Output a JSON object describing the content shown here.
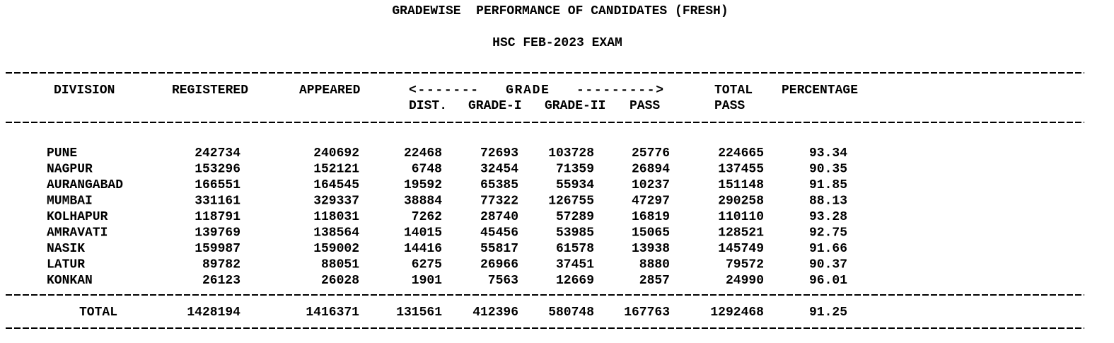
{
  "title": "GRADEWISE  PERFORMANCE OF CANDIDATES (FRESH)",
  "subtitle": "HSC FEB-2023 EXAM",
  "headers": {
    "division": "DIVISION",
    "registered": "REGISTERED",
    "appeared": "APPEARED",
    "grade": "<-------   GRADE   --------->",
    "dist": "DIST.",
    "grade_1": "GRADE-I",
    "grade_2": "GRADE-II",
    "pass": "PASS",
    "total_pass": [
      "TOTAL",
      "PASS"
    ],
    "percentage": "PERCENTAGE"
  },
  "rows": [
    [
      "PUNE",
      "242734",
      "240692",
      "22468",
      "72693",
      "103728",
      "25776",
      "224665",
      "93.34"
    ],
    [
      "NAGPUR",
      "153296",
      "152121",
      "6748",
      "32454",
      "71359",
      "26894",
      "137455",
      "90.35"
    ],
    [
      "AURANGABAD",
      "166551",
      "164545",
      "19592",
      "65385",
      "55934",
      "10237",
      "151148",
      "91.85"
    ],
    [
      "MUMBAI",
      "331161",
      "329337",
      "38884",
      "77322",
      "126755",
      "47297",
      "290258",
      "88.13"
    ],
    [
      "KOLHAPUR",
      "118791",
      "118031",
      "7262",
      "28740",
      "57289",
      "16819",
      "110110",
      "93.28"
    ],
    [
      "AMRAVATI",
      "139769",
      "138564",
      "14015",
      "45456",
      "53985",
      "15065",
      "128521",
      "92.75"
    ],
    [
      "NASIK",
      "159987",
      "159002",
      "14416",
      "55817",
      "61578",
      "13938",
      "145749",
      "91.66"
    ],
    [
      "LATUR",
      "89782",
      "88051",
      "6275",
      "26966",
      "37451",
      "8880",
      "79572",
      "90.37"
    ],
    [
      "KONKAN",
      "26123",
      "26028",
      "1901",
      "7563",
      "12669",
      "2857",
      "24990",
      "96.01"
    ]
  ],
  "total": [
    "TOTAL",
    "1428194",
    "1416371",
    "131561",
    "412396",
    "580748",
    "167763",
    "1292468",
    "91.25"
  ]
}
